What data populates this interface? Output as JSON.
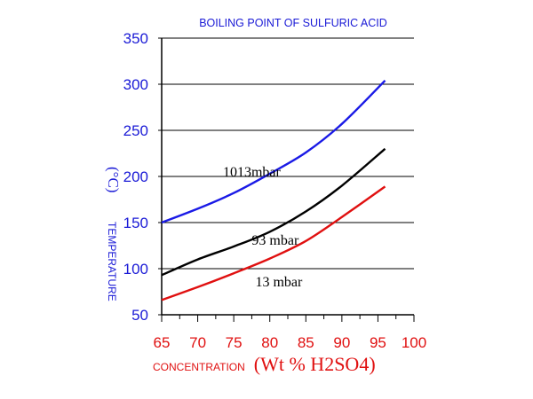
{
  "chart_data": {
    "type": "line",
    "title": "BOILING POINT OF SULFURIC ACID",
    "xlabel_prefix": "CONCENTRATION",
    "xlabel_suffix": "(Wt % H2SO4)",
    "ylabel_text": "TEMPERATURE",
    "ylabel_unit": "(°C)",
    "xlim": [
      65,
      100
    ],
    "ylim": [
      50,
      350
    ],
    "xticks": [
      65,
      70,
      75,
      80,
      85,
      90,
      95,
      100
    ],
    "yticks": [
      50,
      100,
      150,
      200,
      250,
      300,
      350
    ],
    "grid": "horizontal",
    "colors": {
      "title": "#1a1ad6",
      "yaxis": "#1a1ad6",
      "xaxis": "#e01010"
    },
    "series": [
      {
        "name": "1013mbar",
        "color": "#1a1ae6",
        "x": [
          65,
          70,
          75,
          80,
          85,
          90,
          96
        ],
        "y": [
          150,
          165,
          182,
          203,
          226,
          257,
          304
        ]
      },
      {
        "name": "93 mbar",
        "color": "#000000",
        "x": [
          65,
          70,
          75,
          80,
          85,
          90,
          96
        ],
        "y": [
          93,
          110,
          124,
          140,
          162,
          190,
          230
        ]
      },
      {
        "name": "13 mbar",
        "color": "#e01010",
        "x": [
          65,
          70,
          75,
          80,
          85,
          90,
          96
        ],
        "y": [
          66,
          80,
          95,
          111,
          130,
          156,
          189
        ]
      }
    ]
  }
}
